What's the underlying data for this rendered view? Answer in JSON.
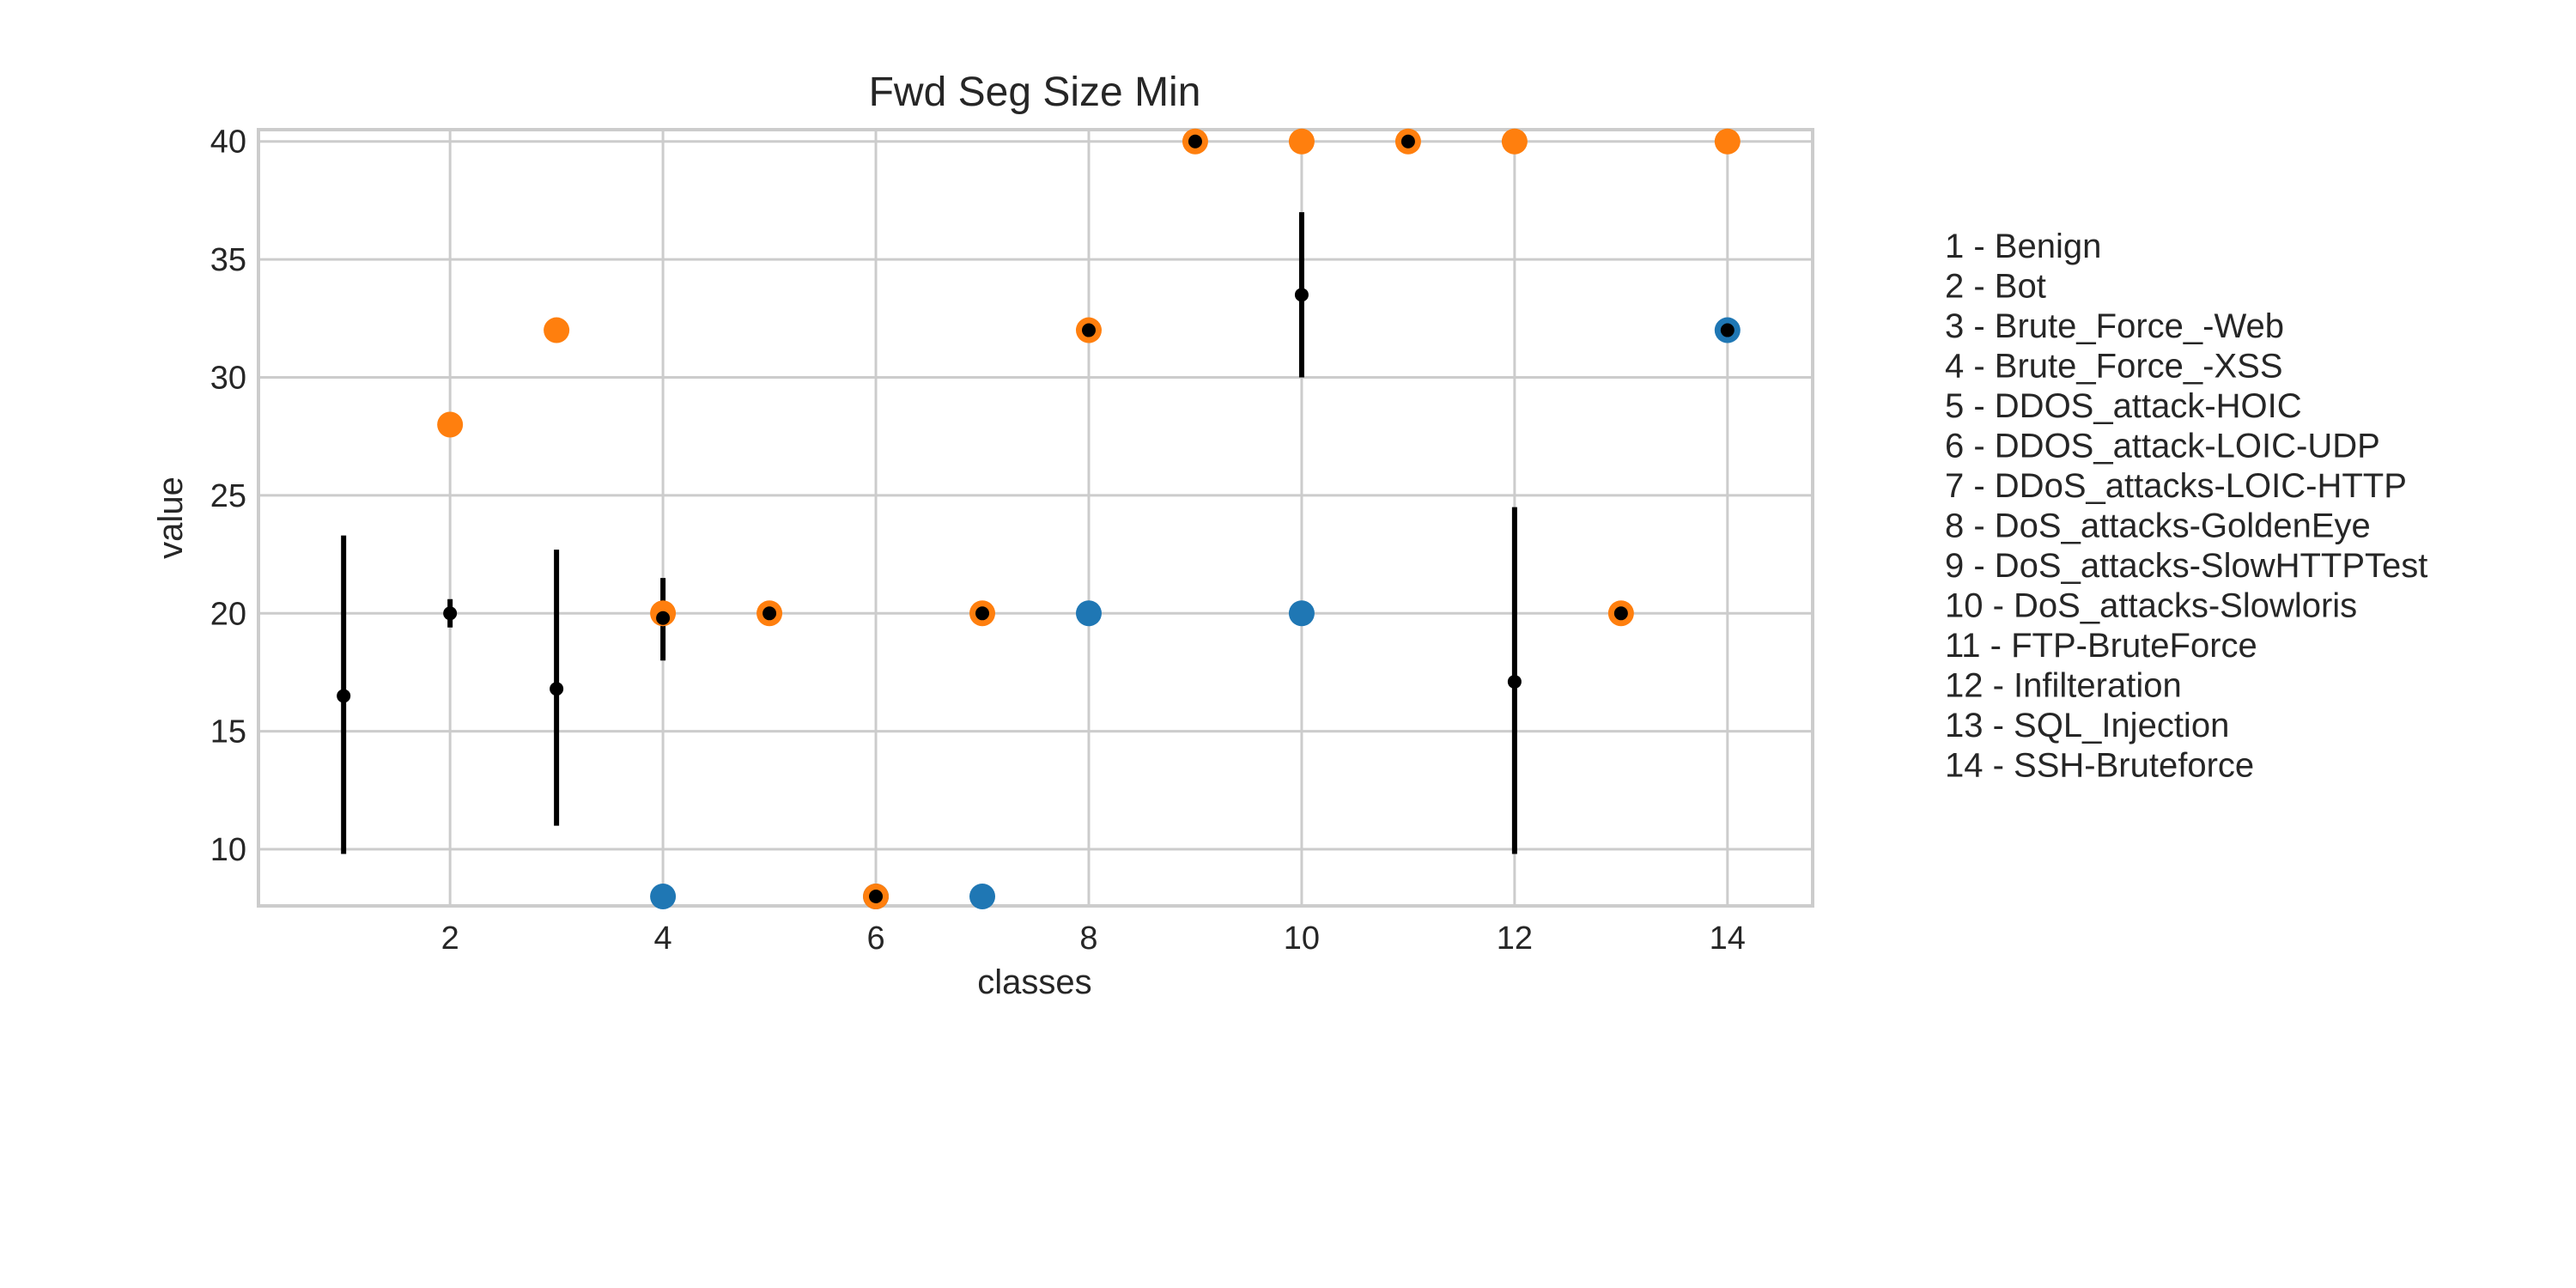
{
  "chart_data": {
    "type": "scatter",
    "title": "Fwd Seg Size Min",
    "xlabel": "classes",
    "ylabel": "value",
    "xlim": [
      0.2,
      14.8
    ],
    "ylim": [
      7.6,
      40.5
    ],
    "xticks": [
      2,
      4,
      6,
      8,
      10,
      12,
      14
    ],
    "yticks": [
      10,
      15,
      20,
      25,
      30,
      35,
      40
    ],
    "grid": true,
    "colors": {
      "min": "#1f77b4",
      "max": "#ff7f0e",
      "mean": "#000000",
      "grid": "#cccccc"
    },
    "series": [
      {
        "key": "min",
        "x": [
          4,
          6,
          7,
          8,
          10,
          14
        ],
        "y": [
          8,
          8,
          8,
          20,
          20,
          32
        ]
      },
      {
        "key": "max",
        "x": [
          2,
          3,
          4,
          5,
          6,
          7,
          8,
          9,
          10,
          11,
          12,
          13,
          14
        ],
        "y": [
          28,
          32,
          20,
          20,
          8,
          20,
          32,
          40,
          40,
          40,
          40,
          20,
          40
        ]
      },
      {
        "key": "mean",
        "x": [
          1,
          2,
          3,
          4,
          5,
          6,
          7,
          8,
          9,
          10,
          11,
          12,
          13,
          14
        ],
        "y": [
          16.5,
          20,
          16.8,
          19.8,
          20,
          8,
          20,
          32,
          40,
          33.5,
          40,
          17.1,
          20,
          32
        ],
        "err_low": [
          9.8,
          19.4,
          11,
          18,
          20,
          8,
          19.5,
          32,
          40,
          30,
          40,
          9.8,
          20,
          32
        ],
        "err_high": [
          23.3,
          20.6,
          22.7,
          21.5,
          20,
          8,
          20.5,
          32,
          40,
          37,
          40,
          24.5,
          20,
          32
        ]
      }
    ],
    "legend": {
      "placement": "right",
      "entries": [
        "1 - Benign",
        "2 - Bot",
        "3 - Brute_Force_-Web",
        "4 - Brute_Force_-XSS",
        "5 - DDOS_attack-HOIC",
        "6 - DDOS_attack-LOIC-UDP",
        "7 - DDoS_attacks-LOIC-HTTP",
        "8 - DoS_attacks-GoldenEye",
        "9 - DoS_attacks-SlowHTTPTest",
        "10 - DoS_attacks-Slowloris",
        "11 - FTP-BruteForce",
        "12 - Infilteration",
        "13 - SQL_Injection",
        "14 - SSH-Bruteforce"
      ]
    }
  }
}
